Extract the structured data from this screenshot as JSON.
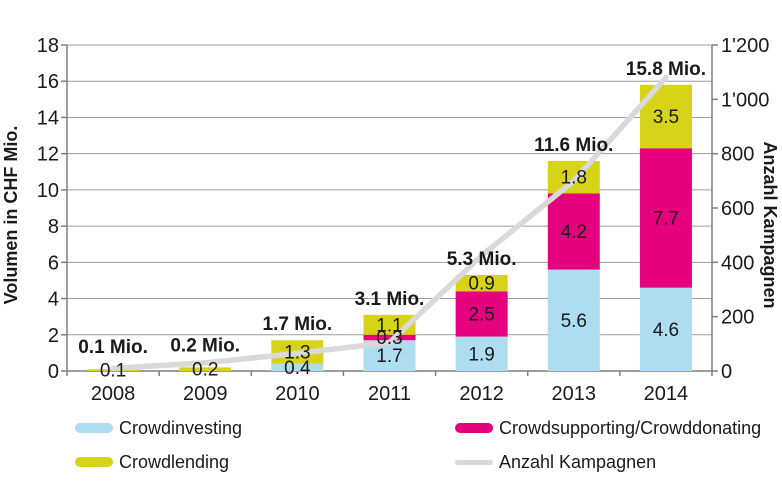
{
  "chart_data": {
    "type": "bar",
    "subtype": "stacked-bars-with-line",
    "categories": [
      "2008",
      "2009",
      "2010",
      "2011",
      "2012",
      "2013",
      "2014"
    ],
    "series": [
      {
        "name": "Crowdinvesting",
        "type": "bar",
        "color": "#aedcf0",
        "values": [
          0,
          0,
          0.4,
          1.7,
          1.9,
          5.6,
          4.6
        ]
      },
      {
        "name": "Crowdsupporting/Crowddonating",
        "type": "bar",
        "color": "#e5007d",
        "values": [
          0,
          0,
          0,
          0.3,
          2.5,
          4.2,
          7.7
        ]
      },
      {
        "name": "Crowdlending",
        "type": "bar",
        "color": "#d6d318",
        "values": [
          0.1,
          0.2,
          1.3,
          1.1,
          0.9,
          1.8,
          3.5
        ]
      },
      {
        "name": "Anzahl Kampagnen",
        "type": "line",
        "axis": "right",
        "color": "#d9d9d9",
        "values": [
          10,
          30,
          65,
          105,
          425,
          700,
          1080
        ]
      }
    ],
    "total_labels": [
      "0.1 Mio.",
      "0.2 Mio.",
      "1.7 Mio.",
      "3.1 Mio.",
      "5.3 Mio.",
      "11.6 Mio.",
      "15.8 Mio."
    ],
    "left_axis": {
      "label": "Volumen in CHF Mio.",
      "min": 0,
      "max": 18,
      "step": 2,
      "tick_labels": [
        "0",
        "2",
        "4",
        "6",
        "8",
        "10",
        "12",
        "14",
        "16",
        "18"
      ]
    },
    "right_axis": {
      "label": "Anzahl Kampagnen",
      "min": 0,
      "max": 1200,
      "step": 200,
      "tick_labels": [
        "0",
        "200",
        "400",
        "600",
        "800",
        "1'000",
        "1'200"
      ]
    },
    "grid": true,
    "legend_position": "bottom"
  },
  "legend": {
    "items": [
      {
        "label": "Crowdinvesting",
        "swatch": "rect",
        "color": "#aedcf0"
      },
      {
        "label": "Crowdlending",
        "swatch": "rect",
        "color": "#d6d318"
      },
      {
        "label": "Crowdsupporting/Crowddonating",
        "swatch": "rect",
        "color": "#e5007d"
      },
      {
        "label": "Anzahl Kampagnen",
        "swatch": "line",
        "color": "#d9d9d9"
      }
    ]
  },
  "colors": {
    "grid": "#9e9e9e",
    "axis": "#7f7f7f",
    "text": "#1a1a1a",
    "background": "#ffffff"
  }
}
